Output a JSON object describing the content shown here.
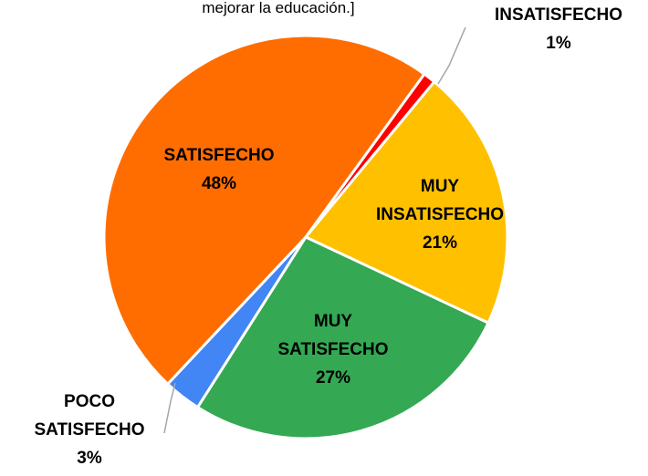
{
  "chart_data": {
    "type": "pie",
    "title": "mejorar la educación.]",
    "categories": [
      "INSATISFECHO",
      "MUY INSATISFECHO",
      "MUY SATISFECHO",
      "POCO SATISFECHO",
      "SATISFECHO"
    ],
    "values": [
      1,
      21,
      27,
      3,
      48
    ],
    "value_labels": [
      "1%",
      "21%",
      "27%",
      "3%",
      "48%"
    ],
    "colors": [
      "#ff0000",
      "#ffc000",
      "#34a853",
      "#4285f4",
      "#ff6d01"
    ]
  }
}
